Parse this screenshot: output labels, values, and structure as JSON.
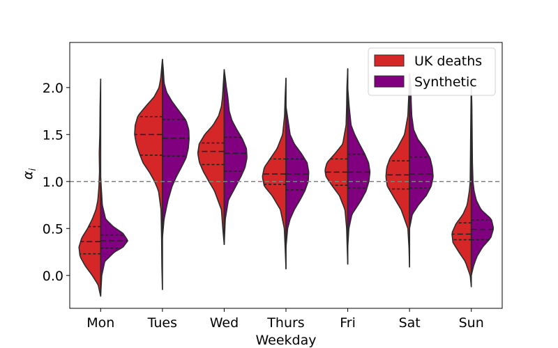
{
  "chart_data": {
    "type": "violin",
    "split": true,
    "xlabel": "Weekday",
    "ylabel": "α_i",
    "ylim": [
      -0.35,
      2.48
    ],
    "yticks": [
      0.0,
      0.5,
      1.0,
      1.5,
      2.0
    ],
    "ytick_labels": [
      "0.0",
      "0.5",
      "1.0",
      "1.5",
      "2.0"
    ],
    "reference_line": {
      "y": 1.0,
      "style": "dashed",
      "color": "#808080"
    },
    "legend": {
      "placement": "top-right"
    },
    "categories": [
      "Mon",
      "Tues",
      "Wed",
      "Thurs",
      "Fri",
      "Sat",
      "Sun"
    ],
    "series": [
      {
        "name": "UK deaths",
        "color": "#d62728",
        "side": "left",
        "violins": [
          {
            "min": -0.22,
            "max": 2.09,
            "q1": 0.23,
            "median": 0.36,
            "q3": 0.52,
            "profile": [
              [
                -0.22,
                0
              ],
              [
                -0.1,
                0.09
              ],
              [
                0.0,
                0.3
              ],
              [
                0.1,
                0.55
              ],
              [
                0.2,
                0.74
              ],
              [
                0.3,
                0.78
              ],
              [
                0.4,
                0.68
              ],
              [
                0.5,
                0.47
              ],
              [
                0.6,
                0.3
              ],
              [
                0.7,
                0.17
              ],
              [
                0.8,
                0.1
              ],
              [
                0.95,
                0.06
              ],
              [
                1.1,
                0.04
              ],
              [
                1.3,
                0.05
              ],
              [
                1.5,
                0.03
              ],
              [
                1.8,
                0.02
              ],
              [
                2.09,
                0
              ]
            ]
          },
          {
            "min": -0.15,
            "max": 2.3,
            "q1": 1.28,
            "median": 1.5,
            "q3": 1.69,
            "profile": [
              [
                -0.15,
                0
              ],
              [
                0.1,
                0.02
              ],
              [
                0.4,
                0.03
              ],
              [
                0.7,
                0.05
              ],
              [
                0.9,
                0.14
              ],
              [
                1.0,
                0.28
              ],
              [
                1.1,
                0.47
              ],
              [
                1.2,
                0.7
              ],
              [
                1.3,
                0.83
              ],
              [
                1.4,
                0.94
              ],
              [
                1.5,
                1.0
              ],
              [
                1.6,
                0.98
              ],
              [
                1.7,
                0.88
              ],
              [
                1.8,
                0.6
              ],
              [
                1.9,
                0.3
              ],
              [
                2.0,
                0.12
              ],
              [
                2.1,
                0.06
              ],
              [
                2.2,
                0.03
              ],
              [
                2.3,
                0
              ]
            ]
          },
          {
            "min": 0.33,
            "max": 2.19,
            "q1": 1.18,
            "median": 1.32,
            "q3": 1.41,
            "profile": [
              [
                0.33,
                0
              ],
              [
                0.5,
                0.05
              ],
              [
                0.7,
                0.1
              ],
              [
                0.9,
                0.35
              ],
              [
                1.0,
                0.55
              ],
              [
                1.1,
                0.74
              ],
              [
                1.2,
                0.89
              ],
              [
                1.3,
                0.95
              ],
              [
                1.4,
                0.9
              ],
              [
                1.5,
                0.7
              ],
              [
                1.6,
                0.4
              ],
              [
                1.7,
                0.2
              ],
              [
                1.8,
                0.1
              ],
              [
                1.9,
                0.06
              ],
              [
                2.0,
                0.04
              ],
              [
                2.19,
                0
              ]
            ]
          },
          {
            "min": 0.07,
            "max": 2.1,
            "q1": 0.97,
            "median": 1.08,
            "q3": 1.24,
            "profile": [
              [
                0.07,
                0
              ],
              [
                0.3,
                0.03
              ],
              [
                0.5,
                0.06
              ],
              [
                0.7,
                0.2
              ],
              [
                0.85,
                0.5
              ],
              [
                0.95,
                0.78
              ],
              [
                1.05,
                0.85
              ],
              [
                1.15,
                0.78
              ],
              [
                1.25,
                0.55
              ],
              [
                1.35,
                0.32
              ],
              [
                1.5,
                0.12
              ],
              [
                1.7,
                0.05
              ],
              [
                1.9,
                0.03
              ],
              [
                2.1,
                0
              ]
            ]
          },
          {
            "min": 0.12,
            "max": 2.2,
            "q1": 0.96,
            "median": 1.1,
            "q3": 1.24,
            "profile": [
              [
                0.12,
                0
              ],
              [
                0.3,
                0.02
              ],
              [
                0.5,
                0.04
              ],
              [
                0.7,
                0.1
              ],
              [
                0.85,
                0.3
              ],
              [
                0.95,
                0.55
              ],
              [
                1.05,
                0.78
              ],
              [
                1.12,
                0.82
              ],
              [
                1.2,
                0.75
              ],
              [
                1.3,
                0.45
              ],
              [
                1.4,
                0.18
              ],
              [
                1.6,
                0.06
              ],
              [
                1.8,
                0.04
              ],
              [
                2.0,
                0.03
              ],
              [
                2.2,
                0
              ]
            ]
          },
          {
            "min": 0.09,
            "max": 2.13,
            "q1": 0.92,
            "median": 1.07,
            "q3": 1.22,
            "profile": [
              [
                0.09,
                0
              ],
              [
                0.3,
                0.02
              ],
              [
                0.5,
                0.06
              ],
              [
                0.7,
                0.3
              ],
              [
                0.85,
                0.6
              ],
              [
                0.95,
                0.8
              ],
              [
                1.05,
                0.85
              ],
              [
                1.15,
                0.82
              ],
              [
                1.25,
                0.7
              ],
              [
                1.35,
                0.45
              ],
              [
                1.5,
                0.18
              ],
              [
                1.7,
                0.06
              ],
              [
                1.9,
                0.03
              ],
              [
                2.13,
                0
              ]
            ]
          },
          {
            "min": -0.12,
            "max": 2.1,
            "q1": 0.38,
            "median": 0.44,
            "q3": 0.56,
            "profile": [
              [
                -0.12,
                0
              ],
              [
                0.0,
                0.04
              ],
              [
                0.15,
                0.22
              ],
              [
                0.25,
                0.45
              ],
              [
                0.35,
                0.66
              ],
              [
                0.45,
                0.7
              ],
              [
                0.55,
                0.55
              ],
              [
                0.65,
                0.3
              ],
              [
                0.75,
                0.15
              ],
              [
                0.9,
                0.07
              ],
              [
                1.0,
                0.04
              ],
              [
                1.3,
                0.03
              ],
              [
                1.6,
                0.02
              ],
              [
                2.1,
                0
              ]
            ]
          }
        ]
      },
      {
        "name": "Synthetic",
        "color": "#800080",
        "side": "right",
        "violins": [
          {
            "min": -0.22,
            "max": 1.05,
            "q1": 0.29,
            "median": 0.37,
            "q3": 0.43,
            "profile": [
              [
                -0.22,
                0
              ],
              [
                0.0,
                0.04
              ],
              [
                0.15,
                0.15
              ],
              [
                0.25,
                0.5
              ],
              [
                0.3,
                0.8
              ],
              [
                0.37,
                0.98
              ],
              [
                0.45,
                0.8
              ],
              [
                0.52,
                0.45
              ],
              [
                0.6,
                0.18
              ],
              [
                0.75,
                0.06
              ],
              [
                0.9,
                0.03
              ],
              [
                1.05,
                0
              ]
            ]
          },
          {
            "min": 0.4,
            "max": 2.3,
            "q1": 1.27,
            "median": 1.46,
            "q3": 1.66,
            "profile": [
              [
                0.4,
                0
              ],
              [
                0.6,
                0.06
              ],
              [
                0.8,
                0.2
              ],
              [
                0.95,
                0.35
              ],
              [
                1.05,
                0.5
              ],
              [
                1.15,
                0.68
              ],
              [
                1.25,
                0.85
              ],
              [
                1.35,
                0.93
              ],
              [
                1.45,
                0.96
              ],
              [
                1.55,
                0.95
              ],
              [
                1.65,
                0.85
              ],
              [
                1.75,
                0.6
              ],
              [
                1.85,
                0.35
              ],
              [
                1.95,
                0.15
              ],
              [
                2.05,
                0.06
              ],
              [
                2.2,
                0.03
              ],
              [
                2.3,
                0
              ]
            ]
          },
          {
            "min": 0.33,
            "max": 2.19,
            "q1": 1.11,
            "median": 1.3,
            "q3": 1.47,
            "profile": [
              [
                0.33,
                0
              ],
              [
                0.6,
                0.04
              ],
              [
                0.8,
                0.15
              ],
              [
                0.95,
                0.42
              ],
              [
                1.05,
                0.6
              ],
              [
                1.15,
                0.75
              ],
              [
                1.25,
                0.82
              ],
              [
                1.35,
                0.8
              ],
              [
                1.45,
                0.66
              ],
              [
                1.55,
                0.46
              ],
              [
                1.65,
                0.28
              ],
              [
                1.75,
                0.18
              ],
              [
                1.9,
                0.13
              ],
              [
                2.0,
                0.08
              ],
              [
                2.1,
                0.04
              ],
              [
                2.19,
                0
              ]
            ]
          },
          {
            "min": 0.3,
            "max": 1.8,
            "q1": 0.91,
            "median": 1.08,
            "q3": 1.24,
            "profile": [
              [
                0.3,
                0
              ],
              [
                0.5,
                0.06
              ],
              [
                0.6,
                0.15
              ],
              [
                0.7,
                0.3
              ],
              [
                0.8,
                0.5
              ],
              [
                0.9,
                0.68
              ],
              [
                1.0,
                0.8
              ],
              [
                1.1,
                0.82
              ],
              [
                1.2,
                0.76
              ],
              [
                1.3,
                0.55
              ],
              [
                1.4,
                0.3
              ],
              [
                1.5,
                0.15
              ],
              [
                1.6,
                0.1
              ],
              [
                1.8,
                0
              ]
            ]
          },
          {
            "min": 0.3,
            "max": 2.0,
            "q1": 0.93,
            "median": 1.1,
            "q3": 1.29,
            "profile": [
              [
                0.3,
                0
              ],
              [
                0.5,
                0.04
              ],
              [
                0.65,
                0.15
              ],
              [
                0.8,
                0.48
              ],
              [
                0.9,
                0.66
              ],
              [
                1.0,
                0.76
              ],
              [
                1.1,
                0.8
              ],
              [
                1.2,
                0.75
              ],
              [
                1.3,
                0.6
              ],
              [
                1.4,
                0.42
              ],
              [
                1.5,
                0.25
              ],
              [
                1.6,
                0.12
              ],
              [
                1.8,
                0.05
              ],
              [
                2.0,
                0
              ]
            ]
          },
          {
            "min": 0.5,
            "max": 2.15,
            "q1": 0.93,
            "median": 1.08,
            "q3": 1.26,
            "profile": [
              [
                0.5,
                0
              ],
              [
                0.65,
                0.1
              ],
              [
                0.75,
                0.32
              ],
              [
                0.85,
                0.6
              ],
              [
                0.95,
                0.78
              ],
              [
                1.05,
                0.85
              ],
              [
                1.15,
                0.82
              ],
              [
                1.25,
                0.74
              ],
              [
                1.35,
                0.55
              ],
              [
                1.45,
                0.3
              ],
              [
                1.55,
                0.15
              ],
              [
                1.7,
                0.08
              ],
              [
                1.85,
                0.06
              ],
              [
                2.0,
                0.05
              ],
              [
                2.15,
                0
              ]
            ]
          },
          {
            "min": 0.0,
            "max": 2.05,
            "q1": 0.38,
            "median": 0.49,
            "q3": 0.59,
            "profile": [
              [
                0.0,
                0
              ],
              [
                0.1,
                0.08
              ],
              [
                0.2,
                0.2
              ],
              [
                0.3,
                0.4
              ],
              [
                0.4,
                0.7
              ],
              [
                0.5,
                0.8
              ],
              [
                0.6,
                0.72
              ],
              [
                0.7,
                0.35
              ],
              [
                0.8,
                0.18
              ],
              [
                0.9,
                0.1
              ],
              [
                1.0,
                0.06
              ],
              [
                1.2,
                0.04
              ],
              [
                1.5,
                0.03
              ],
              [
                1.8,
                0.02
              ],
              [
                2.05,
                0
              ]
            ]
          }
        ]
      }
    ]
  }
}
